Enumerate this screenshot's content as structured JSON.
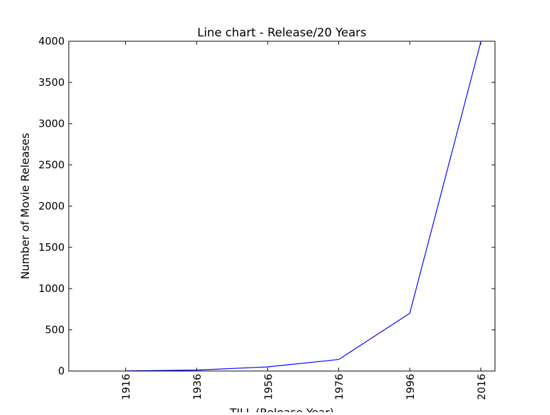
{
  "chart_data": {
    "type": "line",
    "title": "Line chart - Release/20 Years",
    "xlabel": "TILL (Release Year)",
    "ylabel": "Number of Movie Releases",
    "x": [
      1916,
      1936,
      1956,
      1976,
      1996,
      2016
    ],
    "series": [
      {
        "values": [
          2,
          12,
          50,
          140,
          700,
          3990
        ]
      }
    ],
    "xlim": [
      1900,
      2020
    ],
    "ylim": [
      0,
      4000
    ],
    "x_ticks": [
      "1916",
      "1936",
      "1956",
      "1976",
      "1996",
      "2016"
    ],
    "y_ticks": [
      "0",
      "500",
      "1000",
      "1500",
      "2000",
      "2500",
      "3000",
      "3500",
      "4000"
    ],
    "grid": false,
    "legend": false,
    "line_color": "#0000ff"
  }
}
